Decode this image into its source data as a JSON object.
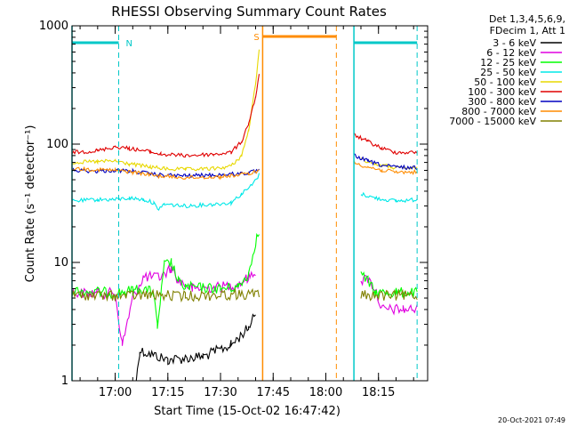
{
  "chart_data": {
    "type": "line",
    "title": "RHESSI Observing Summary Count Rates",
    "xlabel": "Start Time (15-Oct-02 16:47:42)",
    "ylabel": "Count Rate (s⁻¹ detector⁻¹)",
    "yscale": "log",
    "ylim": [
      1,
      1000
    ],
    "xlim": [
      "16:47:42",
      "18:29:00"
    ],
    "xticks": [
      "17:00",
      "17:15",
      "17:30",
      "17:45",
      "18:00",
      "18:15"
    ],
    "yticks": [
      {
        "value": 1,
        "label": "1"
      },
      {
        "value": 10,
        "label": "10"
      },
      {
        "value": 100,
        "label": "100"
      },
      {
        "value": 1000,
        "label": "1000"
      }
    ],
    "legend": {
      "placement": "right",
      "header": [
        "Det 1,3,4,5,6,9,",
        "FDecim 1, Att 1"
      ],
      "entries": [
        {
          "label": "3 - 6 keV",
          "color": "#000000"
        },
        {
          "label": "6 - 12 keV",
          "color": "#e000e0"
        },
        {
          "label": "12 - 25 keV",
          "color": "#00ff00"
        },
        {
          "label": "25 - 50 keV",
          "color": "#00e8e8"
        },
        {
          "label": "50 - 100 keV",
          "color": "#e8d800"
        },
        {
          "label": "100 - 300 keV",
          "color": "#e00000"
        },
        {
          "label": "300 - 800 keV",
          "color": "#0000c0"
        },
        {
          "label": "800 - 7000 keV",
          "color": "#ff8c00"
        },
        {
          "label": "7000 - 15000 keV",
          "color": "#808000"
        }
      ]
    },
    "markers": [
      {
        "label": "N",
        "color": "#00c8c8",
        "start": "16:47:42",
        "end": "17:01:00"
      },
      {
        "label": "",
        "color": "#00c8c8",
        "start": "18:08:00",
        "end": "18:26:00"
      },
      {
        "label": "S",
        "color": "#ff8c00",
        "start": "17:42:00",
        "end": "18:03:00"
      }
    ],
    "series": [
      {
        "name": "3 - 6 keV",
        "color": "#000000",
        "points": [
          [
            "17:06",
            1
          ],
          [
            "17:07",
            1.8
          ],
          [
            "17:15",
            1.5
          ],
          [
            "17:25",
            1.6
          ],
          [
            "17:33",
            2
          ],
          [
            "17:38",
            2.8
          ],
          [
            "17:40",
            4
          ]
        ]
      },
      {
        "name": "6 - 12 keV",
        "color": "#e000e0",
        "points": [
          [
            "16:47:42",
            5.5
          ],
          [
            "17:00",
            5.5
          ],
          [
            "17:02",
            2
          ],
          [
            "17:05",
            5
          ],
          [
            "17:08",
            7.5
          ],
          [
            "17:13",
            7.5
          ],
          [
            "17:16",
            9
          ],
          [
            "17:18",
            7
          ],
          [
            "17:22",
            6
          ],
          [
            "17:30",
            6.2
          ],
          [
            "17:35",
            6.5
          ],
          [
            "17:38",
            7.5
          ],
          [
            "17:40",
            8.5
          ],
          [
            "18:10",
            7
          ],
          [
            "18:12",
            7.3
          ],
          [
            "18:14",
            6
          ],
          [
            "18:16",
            4
          ],
          [
            "18:22",
            4
          ],
          [
            "18:26",
            4
          ]
        ]
      },
      {
        "name": "12 - 25 keV",
        "color": "#00ff00",
        "points": [
          [
            "16:47:42",
            5.8
          ],
          [
            "17:00",
            5.5
          ],
          [
            "17:05",
            5.8
          ],
          [
            "17:08",
            6
          ],
          [
            "17:11",
            5.5
          ],
          [
            "17:12",
            2.8
          ],
          [
            "17:14",
            9.5
          ],
          [
            "17:16",
            10
          ],
          [
            "17:18",
            6.8
          ],
          [
            "17:20",
            6.2
          ],
          [
            "17:30",
            6
          ],
          [
            "17:35",
            6.2
          ],
          [
            "17:38",
            8
          ],
          [
            "17:40",
            15
          ],
          [
            "17:41",
            18
          ],
          [
            "18:10",
            8
          ],
          [
            "18:12",
            7
          ],
          [
            "18:14",
            5.5
          ],
          [
            "18:20",
            5.6
          ],
          [
            "18:26",
            5.5
          ]
        ]
      },
      {
        "name": "25 - 50 keV",
        "color": "#00e8e8",
        "points": [
          [
            "16:47:42",
            33
          ],
          [
            "16:55",
            34
          ],
          [
            "17:00",
            34
          ],
          [
            "17:04",
            35
          ],
          [
            "17:08",
            34
          ],
          [
            "17:11",
            32
          ],
          [
            "17:12",
            28
          ],
          [
            "17:14",
            31
          ],
          [
            "17:20",
            30
          ],
          [
            "17:28",
            31
          ],
          [
            "17:33",
            32
          ],
          [
            "17:36",
            38
          ],
          [
            "17:39",
            45
          ],
          [
            "17:41",
            55
          ],
          [
            "18:10",
            38
          ],
          [
            "18:14",
            35
          ],
          [
            "18:20",
            33
          ],
          [
            "18:26",
            34
          ]
        ]
      },
      {
        "name": "50 - 100 keV",
        "color": "#e8d800",
        "points": [
          [
            "16:47:42",
            70
          ],
          [
            "16:55",
            71
          ],
          [
            "17:00",
            72
          ],
          [
            "17:04",
            68
          ],
          [
            "17:10",
            64
          ],
          [
            "17:14",
            62
          ],
          [
            "17:20",
            61
          ],
          [
            "17:28",
            62
          ],
          [
            "17:33",
            65
          ],
          [
            "17:36",
            80
          ],
          [
            "17:38",
            130
          ],
          [
            "17:40",
            320
          ],
          [
            "17:41",
            650
          ],
          [
            "18:10",
            75
          ],
          [
            "18:14",
            68
          ],
          [
            "18:20",
            63
          ],
          [
            "18:26",
            62
          ]
        ]
      },
      {
        "name": "100 - 300 keV",
        "color": "#e00000",
        "points": [
          [
            "16:47:42",
            85
          ],
          [
            "16:55",
            88
          ],
          [
            "17:00",
            95
          ],
          [
            "17:04",
            92
          ],
          [
            "17:10",
            86
          ],
          [
            "17:13",
            82
          ],
          [
            "17:20",
            80
          ],
          [
            "17:28",
            82
          ],
          [
            "17:33",
            85
          ],
          [
            "17:36",
            105
          ],
          [
            "17:38",
            150
          ],
          [
            "17:40",
            250
          ],
          [
            "17:41",
            380
          ],
          [
            "18:08",
            120
          ],
          [
            "18:12",
            105
          ],
          [
            "18:16",
            92
          ],
          [
            "18:20",
            85
          ],
          [
            "18:26",
            85
          ]
        ]
      },
      {
        "name": "300 - 800 keV",
        "color": "#0000c0",
        "points": [
          [
            "16:47:42",
            60
          ],
          [
            "16:55",
            59
          ],
          [
            "17:00",
            60
          ],
          [
            "17:05",
            59
          ],
          [
            "17:12",
            55
          ],
          [
            "17:20",
            54
          ],
          [
            "17:30",
            55
          ],
          [
            "17:38",
            57
          ],
          [
            "17:41",
            60
          ],
          [
            "18:08",
            80
          ],
          [
            "18:12",
            72
          ],
          [
            "18:16",
            66
          ],
          [
            "18:20",
            64
          ],
          [
            "18:26",
            63
          ]
        ]
      },
      {
        "name": "800 - 7000 keV",
        "color": "#ff8c00",
        "points": [
          [
            "16:47:42",
            62
          ],
          [
            "16:55",
            61
          ],
          [
            "17:00",
            60
          ],
          [
            "17:05",
            58
          ],
          [
            "17:12",
            54
          ],
          [
            "17:20",
            52
          ],
          [
            "17:30",
            53
          ],
          [
            "17:38",
            56
          ],
          [
            "17:41",
            60
          ],
          [
            "18:08",
            70
          ],
          [
            "18:12",
            64
          ],
          [
            "18:16",
            60
          ],
          [
            "18:20",
            58
          ],
          [
            "18:26",
            58
          ]
        ]
      },
      {
        "name": "7000 - 15000 keV",
        "color": "#808000",
        "points": [
          [
            "16:47:42",
            5.3
          ],
          [
            "17:00",
            5.2
          ],
          [
            "17:10",
            5.3
          ],
          [
            "17:20",
            5.2
          ],
          [
            "17:30",
            5.3
          ],
          [
            "17:41",
            5.4
          ],
          [
            "18:10",
            5.3
          ],
          [
            "18:20",
            5.2
          ],
          [
            "18:26",
            5.3
          ]
        ]
      }
    ],
    "timestamp": "20-Oct-2021 07:49"
  }
}
